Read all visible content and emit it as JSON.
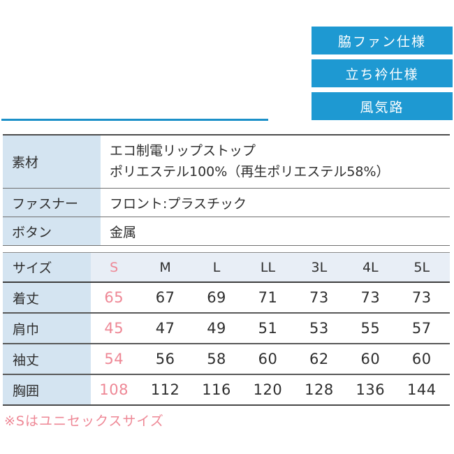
{
  "colors": {
    "badge_blue": "#1e99d2",
    "divider_blue": "#1b90c8",
    "label_cell_blue": "#d4e4f1",
    "header_row_blue": "#e8eef6",
    "highlight_pink": "#ee8795",
    "text_dark": "#2e2e2e"
  },
  "badges": [
    {
      "label": "脇ファン仕様"
    },
    {
      "label": "立ち衿仕様"
    },
    {
      "label": "風気路"
    }
  ],
  "spec_table": {
    "rows": [
      {
        "label": "素材",
        "value_line1": "エコ制電リップストップ",
        "value_line2": "ポリエステル100%（再生ポリエステル58%）"
      },
      {
        "label": "ファスナー",
        "value_line1": "フロント:プラスチック"
      },
      {
        "label": "ボタン",
        "value_line1": "金属"
      }
    ]
  },
  "size_table": {
    "header": [
      "サイズ",
      "S",
      "M",
      "L",
      "LL",
      "3L",
      "4L",
      "5L"
    ],
    "highlight_column": "S",
    "rows": [
      {
        "label": "着丈",
        "values": [
          "65",
          "67",
          "69",
          "71",
          "73",
          "73",
          "73"
        ]
      },
      {
        "label": "肩巾",
        "values": [
          "45",
          "47",
          "49",
          "51",
          "53",
          "55",
          "57"
        ]
      },
      {
        "label": "袖丈",
        "values": [
          "54",
          "56",
          "58",
          "60",
          "62",
          "60",
          "60"
        ]
      },
      {
        "label": "胸囲",
        "values": [
          "108",
          "112",
          "116",
          "120",
          "128",
          "136",
          "144"
        ]
      }
    ]
  },
  "footnote": "※Sはユニセックスサイズ"
}
